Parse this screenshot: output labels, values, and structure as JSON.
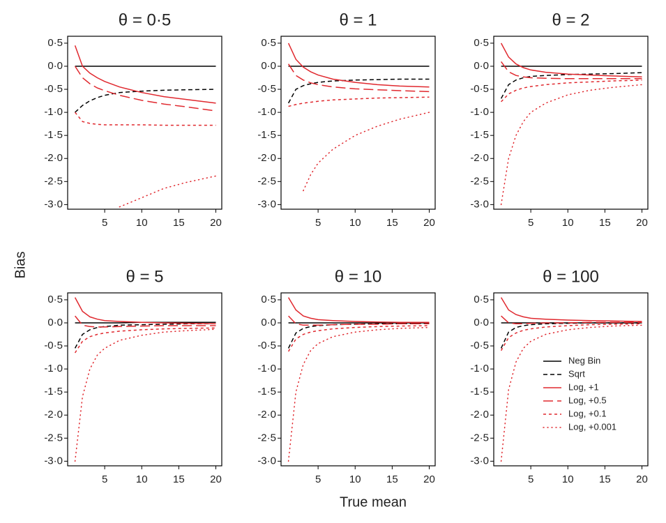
{
  "x_label": "True mean",
  "y_label": "Bias",
  "chart_data": [
    {
      "type": "line",
      "title": "θ = 0·5",
      "x": [
        1,
        2,
        3,
        4,
        5,
        7,
        10,
        13,
        16,
        20
      ],
      "xlim": [
        0,
        20.8
      ],
      "ylim": [
        -3.1,
        0.65
      ],
      "xticks": [
        5,
        10,
        15,
        20
      ],
      "yticks": [
        {
          "value": 0.5,
          "label": "0·5"
        },
        {
          "value": 0,
          "label": "0·0"
        },
        {
          "value": -0.5,
          "label": "-0·5"
        },
        {
          "value": -1,
          "label": "-1·0"
        },
        {
          "value": -1.5,
          "label": "-1·5"
        },
        {
          "value": -2,
          "label": "-2·0"
        },
        {
          "value": -2.5,
          "label": "-2·5"
        },
        {
          "value": -3,
          "label": "-3·0"
        }
      ],
      "series": [
        {
          "color": "#000000",
          "dash": "solid",
          "values": [
            0,
            0,
            0,
            0,
            0,
            0,
            0,
            0,
            0,
            0
          ]
        },
        {
          "color": "#000000",
          "dash": "dashed",
          "values": [
            -1.0,
            -0.85,
            -0.75,
            -0.68,
            -0.63,
            -0.57,
            -0.54,
            -0.52,
            -0.51,
            -0.5
          ]
        },
        {
          "color": "#e0282e",
          "dash": "solid",
          "values": [
            0.45,
            0.0,
            -0.15,
            -0.25,
            -0.33,
            -0.45,
            -0.57,
            -0.66,
            -0.72,
            -0.8
          ]
        },
        {
          "color": "#e0282e",
          "dash": "longdash",
          "values": [
            0.0,
            -0.25,
            -0.38,
            -0.47,
            -0.53,
            -0.63,
            -0.74,
            -0.82,
            -0.88,
            -0.97
          ]
        },
        {
          "color": "#e0282e",
          "dash": "shortdash",
          "values": [
            -1.0,
            -1.2,
            -1.24,
            -1.26,
            -1.27,
            -1.27,
            -1.27,
            -1.28,
            -1.28,
            -1.28
          ]
        },
        {
          "color": "#e0282e",
          "dash": "dotted",
          "values": [
            null,
            null,
            null,
            null,
            null,
            -3.05,
            -2.85,
            -2.65,
            -2.52,
            -2.38
          ]
        }
      ]
    },
    {
      "type": "line",
      "title": "θ = 1",
      "x": [
        1,
        2,
        3,
        4,
        5,
        7,
        10,
        13,
        16,
        20
      ],
      "xlim": [
        0,
        20.8
      ],
      "ylim": [
        -3.1,
        0.65
      ],
      "xticks": [
        5,
        10,
        15,
        20
      ],
      "yticks": [
        {
          "value": 0.5,
          "label": "0·5"
        },
        {
          "value": 0,
          "label": "0·0"
        },
        {
          "value": -0.5,
          "label": "-0·5"
        },
        {
          "value": -1,
          "label": "-1·0"
        },
        {
          "value": -1.5,
          "label": "-1·5"
        },
        {
          "value": -2,
          "label": "-2·0"
        },
        {
          "value": -2.5,
          "label": "-2·5"
        },
        {
          "value": -3,
          "label": "-3·0"
        }
      ],
      "series": [
        {
          "color": "#000000",
          "dash": "solid",
          "values": [
            0,
            0,
            0,
            0,
            0,
            0,
            0,
            0,
            0,
            0
          ]
        },
        {
          "color": "#000000",
          "dash": "dashed",
          "values": [
            -0.8,
            -0.5,
            -0.42,
            -0.38,
            -0.35,
            -0.32,
            -0.3,
            -0.29,
            -0.28,
            -0.28
          ]
        },
        {
          "color": "#e0282e",
          "dash": "solid",
          "values": [
            0.5,
            0.15,
            -0.02,
            -0.12,
            -0.19,
            -0.28,
            -0.35,
            -0.4,
            -0.43,
            -0.45
          ]
        },
        {
          "color": "#e0282e",
          "dash": "longdash",
          "values": [
            0.05,
            -0.2,
            -0.3,
            -0.36,
            -0.4,
            -0.45,
            -0.49,
            -0.51,
            -0.53,
            -0.55
          ]
        },
        {
          "color": "#e0282e",
          "dash": "shortdash",
          "values": [
            -0.87,
            -0.83,
            -0.8,
            -0.78,
            -0.76,
            -0.73,
            -0.71,
            -0.69,
            -0.68,
            -0.67
          ]
        },
        {
          "color": "#e0282e",
          "dash": "dotted",
          "values": [
            null,
            null,
            -2.7,
            -2.35,
            -2.1,
            -1.8,
            -1.5,
            -1.3,
            -1.15,
            -1.0
          ]
        }
      ]
    },
    {
      "type": "line",
      "title": "θ = 2",
      "x": [
        1,
        2,
        3,
        4,
        5,
        7,
        10,
        13,
        16,
        20
      ],
      "xlim": [
        0,
        20.8
      ],
      "ylim": [
        -3.1,
        0.65
      ],
      "xticks": [
        5,
        10,
        15,
        20
      ],
      "yticks": [
        {
          "value": 0.5,
          "label": "0·5"
        },
        {
          "value": 0,
          "label": "0·0"
        },
        {
          "value": -0.5,
          "label": "-0·5"
        },
        {
          "value": -1,
          "label": "-1·0"
        },
        {
          "value": -1.5,
          "label": "-1·5"
        },
        {
          "value": -2,
          "label": "-2·0"
        },
        {
          "value": -2.5,
          "label": "-2·5"
        },
        {
          "value": -3,
          "label": "-3·0"
        }
      ],
      "series": [
        {
          "color": "#000000",
          "dash": "solid",
          "values": [
            0,
            0,
            0,
            0,
            0,
            0,
            0,
            0,
            0,
            0
          ]
        },
        {
          "color": "#000000",
          "dash": "dashed",
          "values": [
            -0.7,
            -0.4,
            -0.3,
            -0.25,
            -0.22,
            -0.2,
            -0.18,
            -0.17,
            -0.16,
            -0.14
          ]
        },
        {
          "color": "#e0282e",
          "dash": "solid",
          "values": [
            0.5,
            0.2,
            0.05,
            -0.03,
            -0.08,
            -0.13,
            -0.17,
            -0.19,
            -0.21,
            -0.23
          ]
        },
        {
          "color": "#e0282e",
          "dash": "longdash",
          "values": [
            0.1,
            -0.12,
            -0.2,
            -0.23,
            -0.25,
            -0.26,
            -0.27,
            -0.27,
            -0.27,
            -0.27
          ]
        },
        {
          "color": "#e0282e",
          "dash": "shortdash",
          "values": [
            -0.77,
            -0.6,
            -0.52,
            -0.47,
            -0.44,
            -0.4,
            -0.36,
            -0.34,
            -0.32,
            -0.3
          ]
        },
        {
          "color": "#e0282e",
          "dash": "dotted",
          "values": [
            -3.0,
            -2.0,
            -1.5,
            -1.2,
            -1.0,
            -0.8,
            -0.62,
            -0.52,
            -0.46,
            -0.4
          ]
        }
      ]
    },
    {
      "type": "line",
      "title": "θ = 5",
      "x": [
        1,
        2,
        3,
        4,
        5,
        7,
        10,
        13,
        16,
        20
      ],
      "xlim": [
        0,
        20.8
      ],
      "ylim": [
        -3.1,
        0.65
      ],
      "xticks": [
        5,
        10,
        15,
        20
      ],
      "yticks": [
        {
          "value": 0.5,
          "label": "0·5"
        },
        {
          "value": 0,
          "label": "0·0"
        },
        {
          "value": -0.5,
          "label": "-0·5"
        },
        {
          "value": -1,
          "label": "-1·0"
        },
        {
          "value": -1.5,
          "label": "-1·5"
        },
        {
          "value": -2,
          "label": "-2·0"
        },
        {
          "value": -2.5,
          "label": "-2·5"
        },
        {
          "value": -3,
          "label": "-3·0"
        }
      ],
      "series": [
        {
          "color": "#000000",
          "dash": "solid",
          "values": [
            0,
            0,
            0,
            0,
            0,
            0,
            0.01,
            0.01,
            0.01,
            0.01
          ]
        },
        {
          "color": "#000000",
          "dash": "dashed",
          "values": [
            -0.55,
            -0.25,
            -0.15,
            -0.1,
            -0.08,
            -0.05,
            -0.04,
            -0.03,
            -0.02,
            -0.02
          ]
        },
        {
          "color": "#e0282e",
          "dash": "solid",
          "values": [
            0.55,
            0.25,
            0.13,
            0.08,
            0.05,
            0.03,
            0.01,
            0.0,
            -0.01,
            -0.02
          ]
        },
        {
          "color": "#e0282e",
          "dash": "longdash",
          "values": [
            0.15,
            -0.05,
            -0.08,
            -0.09,
            -0.09,
            -0.08,
            -0.07,
            -0.06,
            -0.06,
            -0.06
          ]
        },
        {
          "color": "#e0282e",
          "dash": "shortdash",
          "values": [
            -0.65,
            -0.4,
            -0.3,
            -0.25,
            -0.22,
            -0.18,
            -0.15,
            -0.13,
            -0.12,
            -0.11
          ]
        },
        {
          "color": "#e0282e",
          "dash": "dotted",
          "values": [
            -3.0,
            -1.6,
            -1.0,
            -0.7,
            -0.55,
            -0.38,
            -0.27,
            -0.2,
            -0.17,
            -0.14
          ]
        }
      ]
    },
    {
      "type": "line",
      "title": "θ = 10",
      "x": [
        1,
        2,
        3,
        4,
        5,
        7,
        10,
        13,
        16,
        20
      ],
      "xlim": [
        0,
        20.8
      ],
      "ylim": [
        -3.1,
        0.65
      ],
      "xticks": [
        5,
        10,
        15,
        20
      ],
      "yticks": [
        {
          "value": 0.5,
          "label": "0·5"
        },
        {
          "value": 0,
          "label": "0·0"
        },
        {
          "value": -0.5,
          "label": "-0·5"
        },
        {
          "value": -1,
          "label": "-1·0"
        },
        {
          "value": -1.5,
          "label": "-1·5"
        },
        {
          "value": -2,
          "label": "-2·0"
        },
        {
          "value": -2.5,
          "label": "-2·5"
        },
        {
          "value": -3,
          "label": "-3·0"
        }
      ],
      "series": [
        {
          "color": "#000000",
          "dash": "solid",
          "values": [
            0,
            0,
            0,
            0,
            0,
            0,
            0,
            0,
            0,
            0
          ]
        },
        {
          "color": "#000000",
          "dash": "dashed",
          "values": [
            -0.55,
            -0.22,
            -0.12,
            -0.08,
            -0.06,
            -0.04,
            -0.03,
            -0.02,
            -0.02,
            -0.01
          ]
        },
        {
          "color": "#e0282e",
          "dash": "solid",
          "values": [
            0.55,
            0.28,
            0.15,
            0.1,
            0.07,
            0.05,
            0.03,
            0.02,
            0.01,
            0.01
          ]
        },
        {
          "color": "#e0282e",
          "dash": "longdash",
          "values": [
            0.15,
            -0.02,
            -0.05,
            -0.05,
            -0.05,
            -0.04,
            -0.03,
            -0.03,
            -0.02,
            -0.02
          ]
        },
        {
          "color": "#e0282e",
          "dash": "shortdash",
          "values": [
            -0.62,
            -0.35,
            -0.25,
            -0.2,
            -0.17,
            -0.13,
            -0.1,
            -0.08,
            -0.07,
            -0.06
          ]
        },
        {
          "color": "#e0282e",
          "dash": "dotted",
          "values": [
            -3.0,
            -1.5,
            -0.9,
            -0.6,
            -0.45,
            -0.3,
            -0.2,
            -0.15,
            -0.12,
            -0.1
          ]
        }
      ]
    },
    {
      "type": "line",
      "title": "θ = 100",
      "x": [
        1,
        2,
        3,
        4,
        5,
        7,
        10,
        13,
        16,
        20
      ],
      "xlim": [
        0,
        20.8
      ],
      "ylim": [
        -3.1,
        0.65
      ],
      "xticks": [
        5,
        10,
        15,
        20
      ],
      "yticks": [
        {
          "value": 0.5,
          "label": "0·5"
        },
        {
          "value": 0,
          "label": "0·0"
        },
        {
          "value": -0.5,
          "label": "-0·5"
        },
        {
          "value": -1,
          "label": "-1·0"
        },
        {
          "value": -1.5,
          "label": "-1·5"
        },
        {
          "value": -2,
          "label": "-2·0"
        },
        {
          "value": -2.5,
          "label": "-2·5"
        },
        {
          "value": -3,
          "label": "-3·0"
        }
      ],
      "legend": "lower right",
      "series": [
        {
          "name": "Neg Bin",
          "color": "#000000",
          "dash": "solid",
          "values": [
            0,
            0,
            0,
            0,
            0,
            0,
            0,
            0,
            0,
            0
          ]
        },
        {
          "name": "Sqrt",
          "color": "#000000",
          "dash": "dashed",
          "values": [
            -0.55,
            -0.2,
            -0.1,
            -0.06,
            -0.04,
            -0.02,
            -0.01,
            0,
            0,
            0
          ]
        },
        {
          "name": "Log, +1",
          "color": "#e0282e",
          "dash": "solid",
          "values": [
            0.55,
            0.28,
            0.18,
            0.13,
            0.1,
            0.08,
            0.06,
            0.05,
            0.04,
            0.03
          ]
        },
        {
          "name": "Log, +0.5",
          "color": "#e0282e",
          "dash": "longdash",
          "values": [
            0.15,
            0,
            -0.02,
            -0.02,
            -0.01,
            0,
            0,
            0.01,
            0.01,
            0.01
          ]
        },
        {
          "name": "Log, +0.1",
          "color": "#e0282e",
          "dash": "shortdash",
          "values": [
            -0.6,
            -0.32,
            -0.22,
            -0.16,
            -0.13,
            -0.09,
            -0.06,
            -0.04,
            -0.03,
            -0.02
          ]
        },
        {
          "name": "Log, +0.001",
          "color": "#e0282e",
          "dash": "dotted",
          "values": [
            -3.0,
            -1.45,
            -0.85,
            -0.55,
            -0.4,
            -0.25,
            -0.15,
            -0.1,
            -0.07,
            -0.05
          ]
        }
      ]
    }
  ]
}
